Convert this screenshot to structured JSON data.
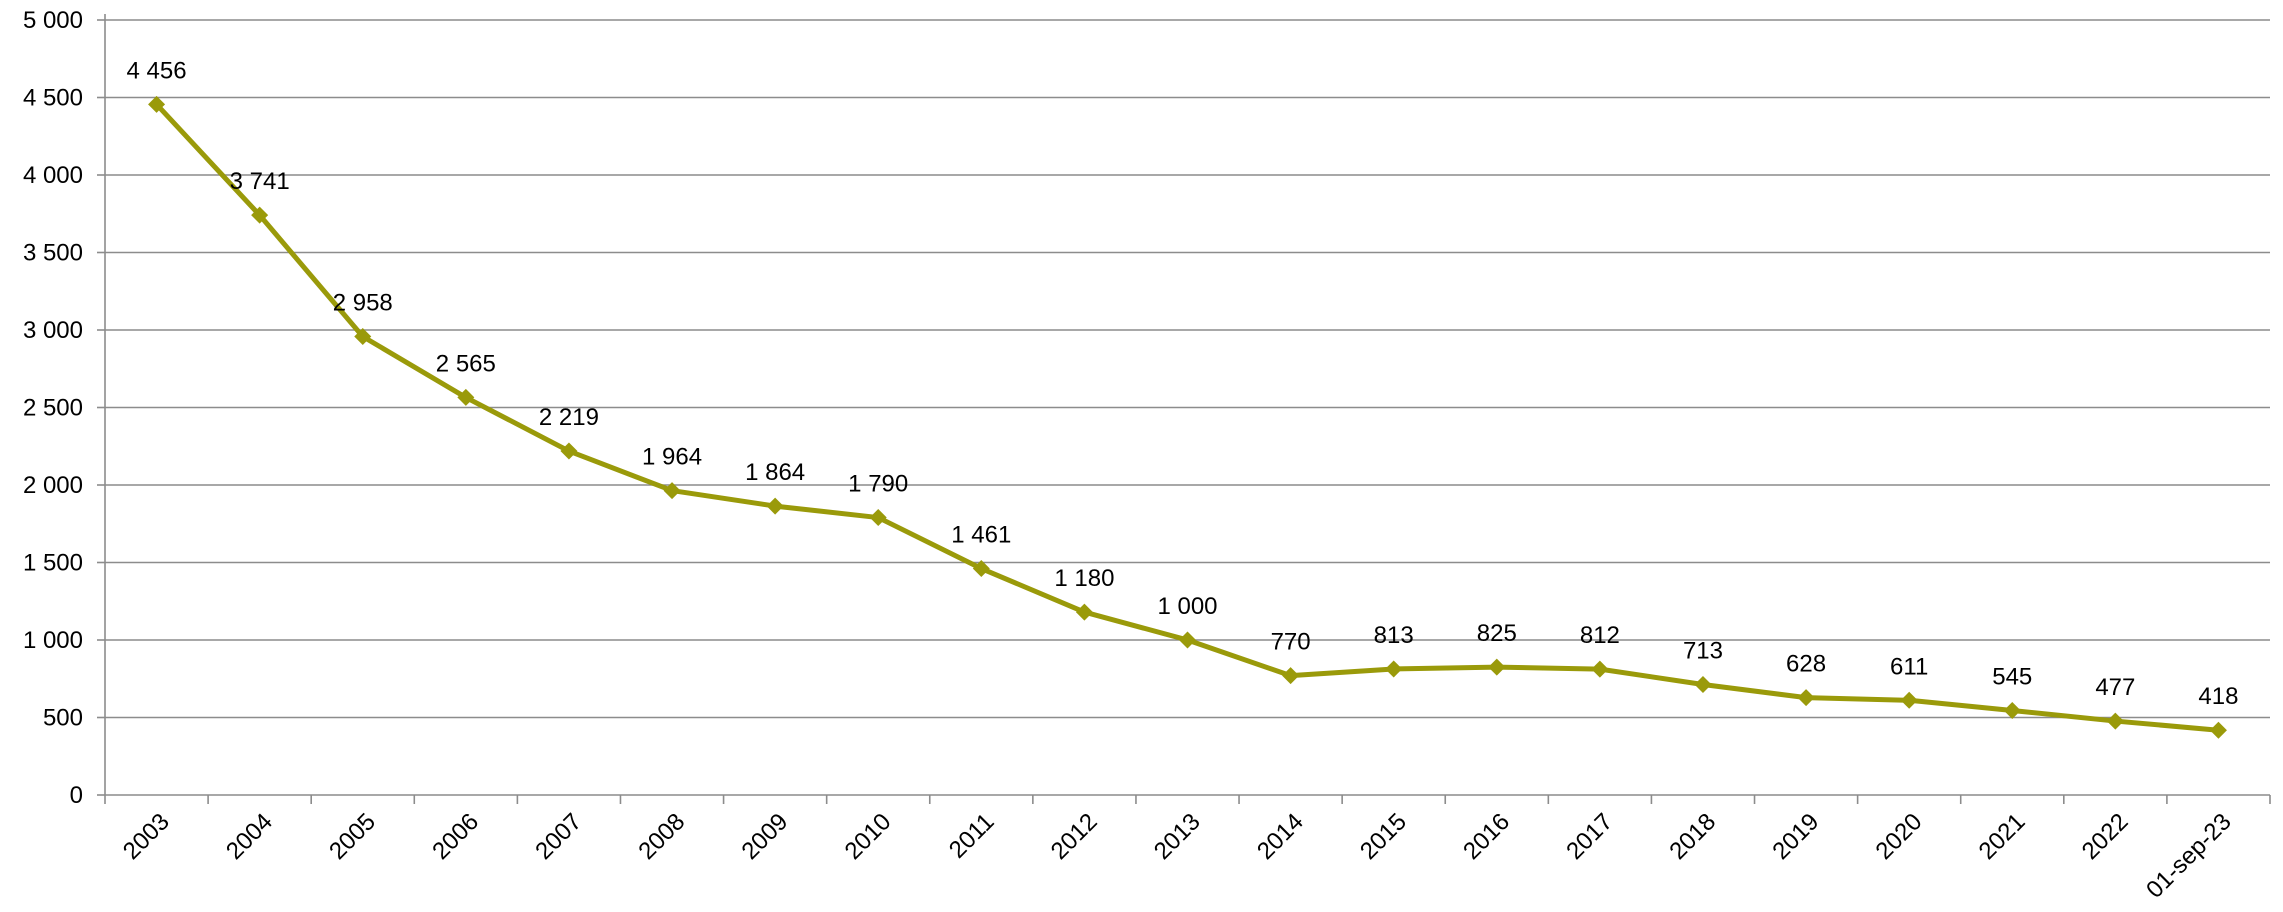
{
  "chart_data": {
    "type": "line",
    "title": "",
    "xlabel": "",
    "ylabel": "",
    "categories": [
      "2003",
      "2004",
      "2005",
      "2006",
      "2007",
      "2008",
      "2009",
      "2010",
      "2011",
      "2012",
      "2013",
      "2014",
      "2015",
      "2016",
      "2017",
      "2018",
      "2019",
      "2020",
      "2021",
      "2022",
      "01-sep-23"
    ],
    "series": [
      {
        "values": [
          4456,
          3741,
          2958,
          2565,
          2219,
          1964,
          1864,
          1790,
          1461,
          1180,
          1000,
          770,
          813,
          825,
          812,
          713,
          628,
          611,
          545,
          477,
          418
        ],
        "labels": [
          "4 456",
          "3 741",
          "2 958",
          "2 565",
          "2 219",
          "1 964",
          "1 864",
          "1 790",
          "1 461",
          "1 180",
          "1 000",
          "770",
          "813",
          "825",
          "812",
          "713",
          "628",
          "611",
          "545",
          "477",
          "418"
        ],
        "color": "#9a9a0a",
        "marker": "diamond"
      }
    ],
    "ylim": [
      0,
      5000
    ],
    "yticks": [
      0,
      500,
      1000,
      1500,
      2000,
      2500,
      3000,
      3500,
      4000,
      4500,
      5000
    ],
    "ytick_labels": [
      "0",
      "500",
      "1 000",
      "1 500",
      "2 000",
      "2 500",
      "3 000",
      "3 500",
      "4 000",
      "4 500",
      "5 000"
    ],
    "grid": true,
    "legend": "none"
  }
}
